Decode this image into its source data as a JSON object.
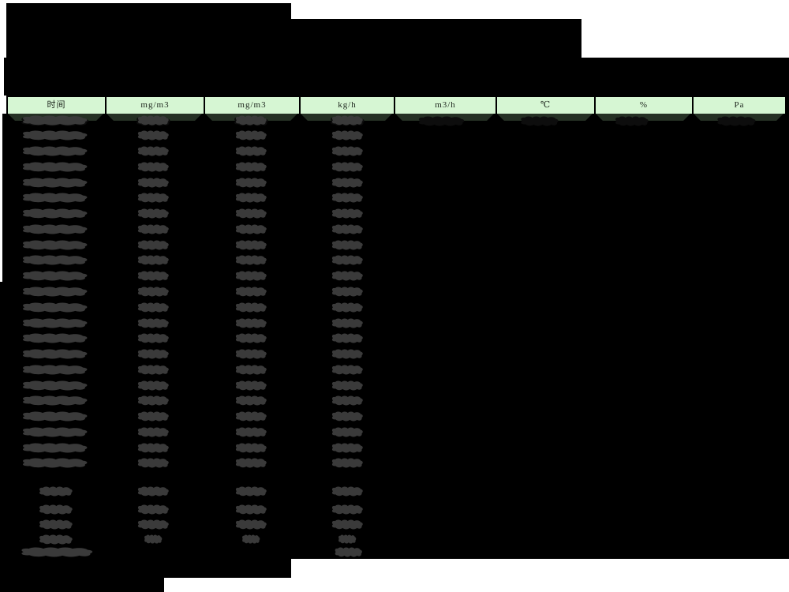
{
  "document": {
    "description": "redacted-emissions-monitoring-report-table",
    "header_columns": [
      "时间",
      "mg/m3",
      "mg/m3",
      "kg/h",
      "m3/h",
      "℃",
      "%",
      "Pa"
    ],
    "colors": {
      "page_bg": "#ffffff",
      "redaction": "#000000",
      "value_blob": "#3a3a3a",
      "first_row_blob": "#0d0d0d",
      "header_fill": "#d6f6d3",
      "header_border": "#000000",
      "header_text": "#1c241c",
      "header_shadow": "#253024"
    },
    "redaction_layout": {
      "title_lines_redacted": 3,
      "main_data_rows": 23,
      "summary_rows": 4,
      "total_rows": 1,
      "first_row_has_all_columns": true,
      "data_columns_with_values": 4
    }
  }
}
